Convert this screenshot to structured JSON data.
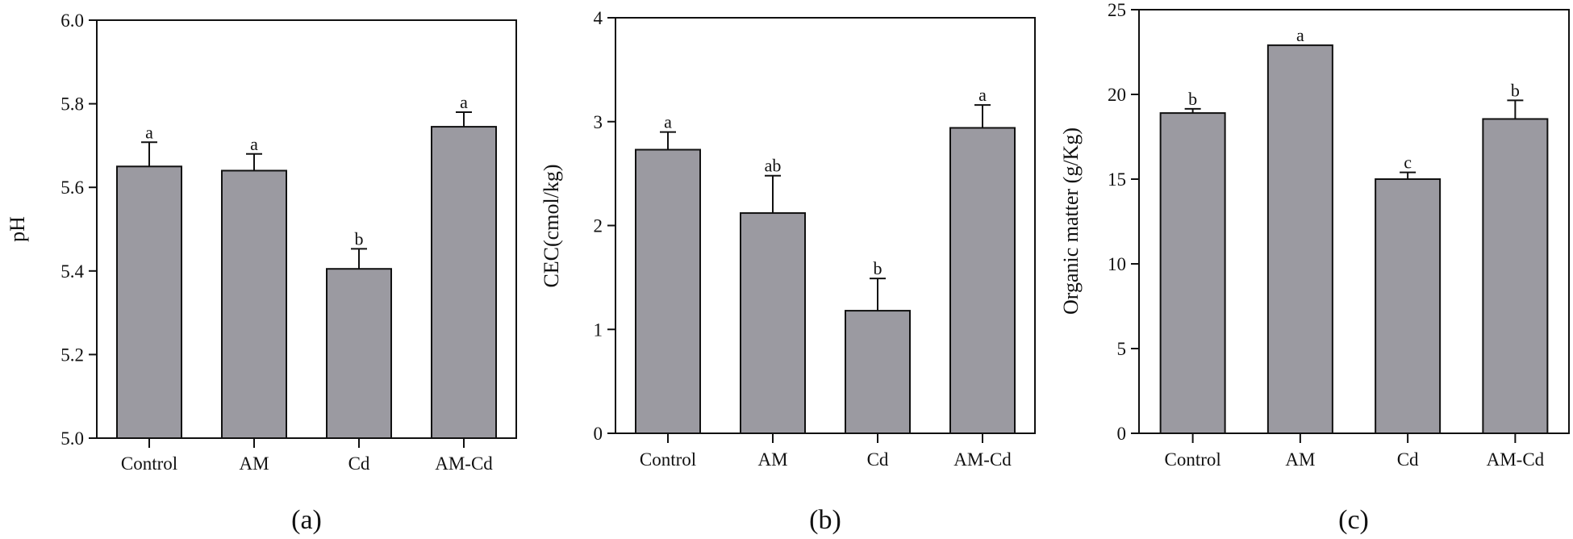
{
  "chart_data": [
    {
      "type": "bar",
      "panel_label": "(a)",
      "title": "",
      "xlabel": "",
      "ylabel": "pH",
      "categories": [
        "Control",
        "AM",
        "Cd",
        "AM-Cd"
      ],
      "values": [
        5.65,
        5.64,
        5.405,
        5.745
      ],
      "errors": [
        0.058,
        0.04,
        0.048,
        0.035
      ],
      "significance": [
        "a",
        "a",
        "b",
        "a"
      ],
      "ylim": [
        5.0,
        6.0
      ],
      "yticks": [
        5.0,
        5.2,
        5.4,
        5.6,
        5.8,
        6.0
      ],
      "ytick_labels": [
        "5.0",
        "5.2",
        "5.4",
        "5.6",
        "5.8",
        "6.0"
      ],
      "bar_color": "#9b9aa1",
      "grid": false
    },
    {
      "type": "bar",
      "panel_label": "(b)",
      "title": "",
      "xlabel": "",
      "ylabel": "CEC(cmol/kg)",
      "categories": [
        "Control",
        "AM",
        "Cd",
        "AM-Cd"
      ],
      "values": [
        2.73,
        2.12,
        1.18,
        2.94
      ],
      "errors": [
        0.17,
        0.36,
        0.31,
        0.22
      ],
      "significance": [
        "a",
        "ab",
        "b",
        "a"
      ],
      "ylim": [
        0,
        4
      ],
      "yticks": [
        0,
        1,
        2,
        3,
        4
      ],
      "ytick_labels": [
        "0",
        "1",
        "2",
        "3",
        "4"
      ],
      "bar_color": "#9b9aa1",
      "grid": false
    },
    {
      "type": "bar",
      "panel_label": "(c)",
      "title": "",
      "xlabel": "",
      "ylabel": "Organic matter (g/Kg)",
      "categories": [
        "Control",
        "AM",
        "Cd",
        "AM-Cd"
      ],
      "values": [
        18.9,
        22.9,
        15.0,
        18.55
      ],
      "errors": [
        0.25,
        0.0,
        0.4,
        1.1
      ],
      "significance": [
        "b",
        "a",
        "c",
        "b"
      ],
      "ylim": [
        0,
        25
      ],
      "yticks": [
        0,
        5,
        10,
        15,
        20,
        25
      ],
      "ytick_labels": [
        "0",
        "5",
        "10",
        "15",
        "20",
        "25"
      ],
      "bar_color": "#9b9aa1",
      "grid": false
    }
  ]
}
